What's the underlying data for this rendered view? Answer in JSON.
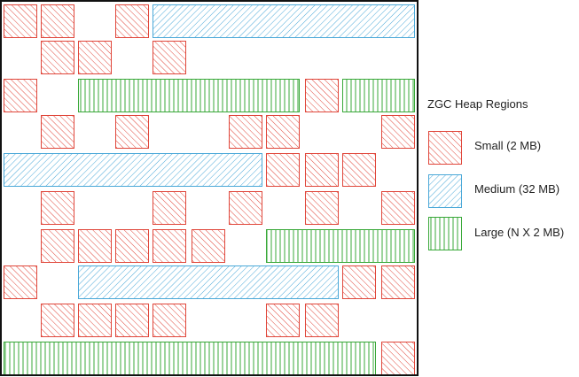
{
  "legend": {
    "title": "ZGC Heap Regions",
    "items": [
      {
        "key": "small",
        "label": "Small (2 MB)"
      },
      {
        "key": "medium",
        "label": "Medium (32 MB)"
      },
      {
        "key": "large",
        "label": "Large (N X 2 MB)"
      }
    ]
  },
  "colors": {
    "small": "#e0463a",
    "medium": "#4aa8d8",
    "large": "#38a838",
    "frame": "#111111"
  }
}
